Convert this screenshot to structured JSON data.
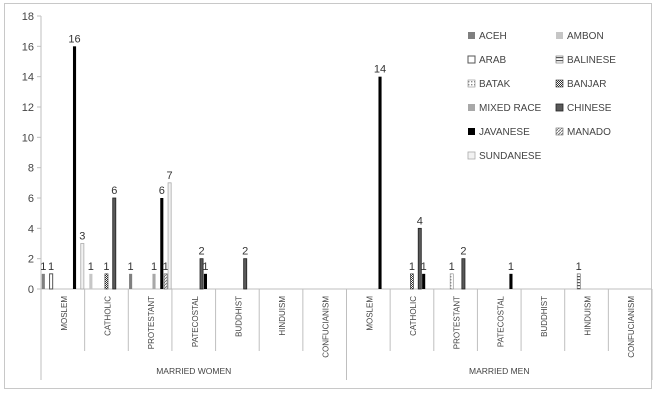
{
  "chart_data": {
    "type": "bar",
    "ylim": [
      0,
      18
    ],
    "yticks": [
      0,
      2,
      4,
      6,
      8,
      10,
      12,
      14,
      16,
      18
    ],
    "grid": false,
    "legend_position": "top-right",
    "groups": [
      {
        "label": "MARRIED WOMEN",
        "categories": [
          "MOSLEM",
          "CATHOLIC",
          "PROTESTANT",
          "PATECOSTAL",
          "BUDDHIST",
          "HINDUISM",
          "CONFUCIANISM"
        ]
      },
      {
        "label": "MARRIED MEN",
        "categories": [
          "MOSLEM",
          "CATHOLIC",
          "PROTESTANT",
          "PATECOSTAL",
          "BUDDHIST",
          "HINDUISM",
          "CONFUCIANISM"
        ]
      }
    ],
    "series": [
      {
        "name": "ACEH",
        "color": "#7f7f7f",
        "pattern": "solid-gray",
        "values": [
          [
            1,
            0,
            1,
            0,
            0,
            0,
            0
          ],
          [
            0,
            0,
            0,
            0,
            0,
            0,
            0
          ]
        ]
      },
      {
        "name": "AMBON",
        "color": "#c6c6c6",
        "pattern": "solid-light",
        "values": [
          [
            0,
            1,
            0,
            0,
            0,
            0,
            0
          ],
          [
            0,
            0,
            0,
            0,
            0,
            0,
            0
          ]
        ]
      },
      {
        "name": "ARAB",
        "color": "#ffffff",
        "pattern": "outline",
        "values": [
          [
            1,
            0,
            0,
            0,
            0,
            0,
            0
          ],
          [
            0,
            0,
            0,
            0,
            0,
            0,
            0
          ]
        ]
      },
      {
        "name": "BALINESE",
        "color": "#555555",
        "pattern": "horizontal-lines",
        "values": [
          [
            0,
            0,
            0,
            0,
            0,
            0,
            0
          ],
          [
            0,
            0,
            0,
            0,
            0,
            1,
            0
          ]
        ]
      },
      {
        "name": "BATAK",
        "color": "#9a9a9a",
        "pattern": "dots",
        "values": [
          [
            0,
            0,
            0,
            0,
            0,
            0,
            0
          ],
          [
            0,
            0,
            1,
            0,
            0,
            0,
            0
          ]
        ]
      },
      {
        "name": "BANJAR",
        "color": "#444444",
        "pattern": "checker",
        "values": [
          [
            0,
            1,
            0,
            0,
            0,
            0,
            0
          ],
          [
            0,
            1,
            0,
            0,
            0,
            0,
            0
          ]
        ]
      },
      {
        "name": "MIXED RACE",
        "color": "#a8a8a8",
        "pattern": "solid-mid",
        "values": [
          [
            0,
            0,
            1,
            0,
            0,
            0,
            0
          ],
          [
            0,
            0,
            0,
            0,
            0,
            0,
            0
          ]
        ]
      },
      {
        "name": "CHINESE",
        "color": "#595959",
        "pattern": "dark-outline",
        "values": [
          [
            0,
            6,
            0,
            2,
            2,
            0,
            0
          ],
          [
            0,
            4,
            2,
            0,
            0,
            0,
            0
          ]
        ]
      },
      {
        "name": "JAVANESE",
        "color": "#000000",
        "pattern": "solid-black",
        "values": [
          [
            16,
            0,
            6,
            1,
            0,
            0,
            0
          ],
          [
            14,
            1,
            0,
            1,
            0,
            0,
            0
          ]
        ]
      },
      {
        "name": "MANADO",
        "color": "#8c8c8c",
        "pattern": "diagonal",
        "values": [
          [
            0,
            0,
            1,
            0,
            0,
            0,
            0
          ],
          [
            0,
            0,
            0,
            0,
            0,
            0,
            0
          ]
        ]
      },
      {
        "name": "SUNDANESE",
        "color": "#f2f2f2",
        "pattern": "light-outline",
        "values": [
          [
            3,
            0,
            7,
            0,
            0,
            0,
            0
          ],
          [
            0,
            0,
            0,
            0,
            0,
            0,
            0
          ]
        ]
      }
    ]
  }
}
